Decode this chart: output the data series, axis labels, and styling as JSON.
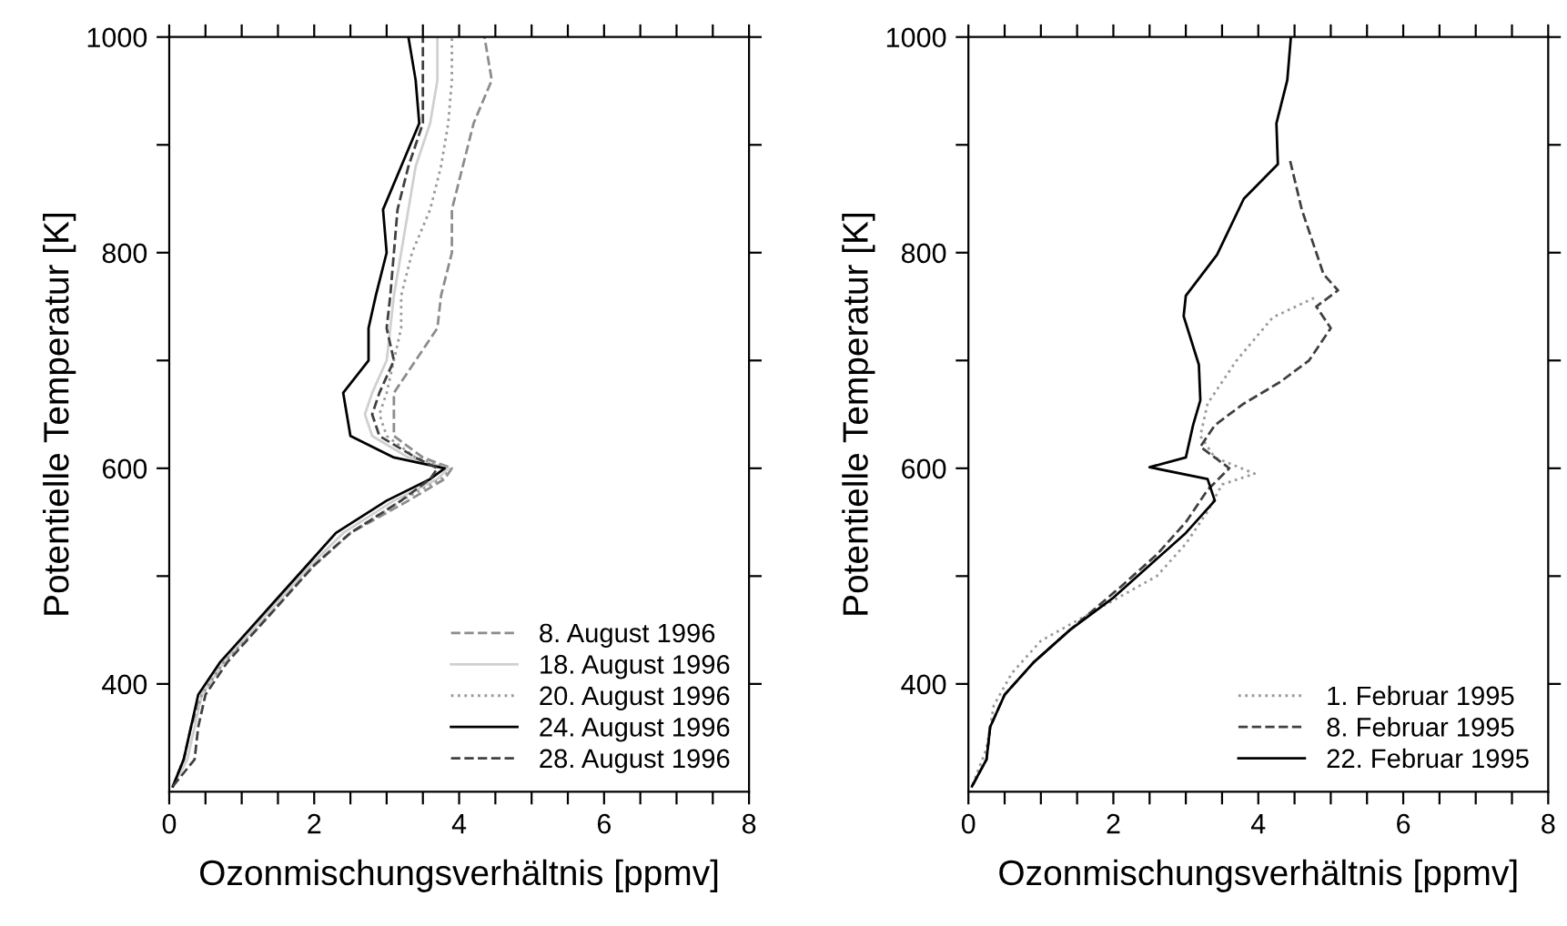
{
  "chart_data": [
    {
      "type": "line",
      "xlabel": "Ozonmischungsverhältnis [ppmv]",
      "ylabel": "Potentielle Temperatur [K]",
      "xlim": [
        0,
        8
      ],
      "ylim": [
        300,
        1000
      ],
      "xticks": [
        0,
        {
          "value": 0.5,
          "label": null
        },
        {
          "value": 1,
          "label": null
        },
        {
          "value": 1.5,
          "label": null
        },
        2,
        {
          "value": 2.5,
          "label": null
        },
        {
          "value": 3,
          "label": null
        },
        {
          "value": 3.5,
          "label": null
        },
        4,
        {
          "value": 4.5,
          "label": null
        },
        {
          "value": 5,
          "label": null
        },
        {
          "value": 5.5,
          "label": null
        },
        6,
        {
          "value": 6.5,
          "label": null
        },
        {
          "value": 7,
          "label": null
        },
        {
          "value": 7.5,
          "label": null
        },
        8
      ],
      "yticks": [
        400,
        {
          "value": 500,
          "label": null
        },
        600,
        {
          "value": 700,
          "label": null
        },
        800,
        {
          "value": 900,
          "label": null
        },
        1000
      ],
      "legend": "bottom right",
      "grid": false,
      "marker": "none",
      "series": [
        {
          "name": "8. August 1996",
          "color": "#8c8c8c",
          "line_style": "dashed",
          "x": [
            0.05,
            0.2,
            0.3,
            0.45,
            0.75,
            1.15,
            1.55,
            2.0,
            2.5,
            3.3,
            3.8,
            3.9,
            3.5,
            3.1,
            3.1,
            3.1,
            3.4,
            3.7,
            3.75,
            3.9,
            3.9,
            4.05,
            4.2,
            4.45,
            4.35
          ],
          "values": [
            305,
            330,
            360,
            390,
            420,
            450,
            480,
            510,
            540,
            570,
            590,
            600,
            610,
            630,
            650,
            670,
            700,
            730,
            760,
            800,
            840,
            880,
            920,
            960,
            1000
          ]
        },
        {
          "name": "18. August 1996",
          "color": "#d0d0d0",
          "line_style": "solid",
          "x": [
            0.05,
            0.25,
            0.35,
            0.45,
            0.75,
            1.15,
            1.55,
            1.95,
            2.4,
            3.1,
            3.7,
            3.85,
            3.3,
            2.8,
            2.7,
            2.8,
            3.0,
            3.05,
            3.1,
            3.2,
            3.3,
            3.4,
            3.6,
            3.7,
            3.7
          ],
          "values": [
            305,
            330,
            360,
            390,
            420,
            450,
            480,
            510,
            540,
            570,
            590,
            600,
            610,
            630,
            650,
            670,
            700,
            730,
            760,
            800,
            840,
            880,
            920,
            960,
            1000
          ]
        },
        {
          "name": "20. August 1996",
          "color": "#9a9a9a",
          "line_style": "dotted",
          "x": [
            0.05,
            0.2,
            0.3,
            0.45,
            0.75,
            1.2,
            1.6,
            2.0,
            2.5,
            3.2,
            3.75,
            3.9,
            3.4,
            3.0,
            2.9,
            3.0,
            3.1,
            3.2,
            3.2,
            3.35,
            3.6,
            3.75,
            3.85,
            3.9,
            3.9
          ],
          "values": [
            305,
            330,
            360,
            390,
            420,
            450,
            480,
            510,
            540,
            570,
            590,
            600,
            610,
            630,
            650,
            670,
            700,
            730,
            760,
            800,
            840,
            880,
            920,
            960,
            1000
          ]
        },
        {
          "name": "24. August 1996",
          "color": "#000000",
          "line_style": "solid",
          "x": [
            0.05,
            0.2,
            0.3,
            0.4,
            0.7,
            1.1,
            1.5,
            1.9,
            2.3,
            3.0,
            3.6,
            3.8,
            3.1,
            2.5,
            2.45,
            2.4,
            2.75,
            2.75,
            2.85,
            3.0,
            2.95,
            3.2,
            3.45,
            3.4,
            3.3
          ],
          "values": [
            305,
            330,
            360,
            390,
            420,
            450,
            480,
            510,
            540,
            570,
            590,
            600,
            610,
            630,
            650,
            670,
            700,
            730,
            760,
            800,
            840,
            880,
            920,
            960,
            1000
          ]
        },
        {
          "name": "28. August 1996",
          "color": "#404040",
          "line_style": "dashed",
          "x": [
            0.05,
            0.35,
            0.4,
            0.5,
            0.8,
            1.2,
            1.6,
            2.0,
            2.5,
            3.2,
            3.6,
            3.7,
            3.4,
            2.9,
            2.8,
            2.9,
            3.1,
            3.0,
            3.05,
            3.1,
            3.15,
            3.3,
            3.5,
            3.5,
            3.5
          ],
          "values": [
            305,
            330,
            360,
            390,
            420,
            450,
            480,
            510,
            540,
            570,
            590,
            600,
            610,
            630,
            650,
            670,
            700,
            730,
            760,
            800,
            840,
            880,
            920,
            960,
            1000
          ]
        }
      ]
    },
    {
      "type": "line",
      "xlabel": "Ozonmischungsverhältnis [ppmv]",
      "ylabel": "Potentielle Temperatur [K]",
      "xlim": [
        0,
        8
      ],
      "ylim": [
        300,
        1000
      ],
      "xticks": [
        0,
        {
          "value": 0.5,
          "label": null
        },
        {
          "value": 1,
          "label": null
        },
        {
          "value": 1.5,
          "label": null
        },
        2,
        {
          "value": 2.5,
          "label": null
        },
        {
          "value": 3,
          "label": null
        },
        {
          "value": 3.5,
          "label": null
        },
        4,
        {
          "value": 4.5,
          "label": null
        },
        {
          "value": 5,
          "label": null
        },
        {
          "value": 5.5,
          "label": null
        },
        6,
        {
          "value": 6.5,
          "label": null
        },
        {
          "value": 7,
          "label": null
        },
        {
          "value": 7.5,
          "label": null
        },
        8
      ],
      "yticks": [
        400,
        {
          "value": 500,
          "label": null
        },
        600,
        {
          "value": 700,
          "label": null
        },
        800,
        {
          "value": 900,
          "label": null
        },
        1000
      ],
      "legend": "bottom right",
      "grid": false,
      "marker": "none",
      "series": [
        {
          "name": "1. Februar 1995",
          "color": "#9a9a9a",
          "line_style": "dotted",
          "x": [
            4.77,
            4.2,
            3.7,
            3.3,
            3.2,
            3.4,
            3.95,
            3.5,
            3.3,
            3.0,
            2.6,
            1.8,
            1.0,
            0.6,
            0.35,
            0.25,
            0.05
          ],
          "values": [
            758,
            740,
            700,
            660,
            630,
            610,
            595,
            585,
            560,
            530,
            500,
            470,
            440,
            410,
            380,
            340,
            305
          ]
        },
        {
          "name": "8. Februar 1995",
          "color": "#404040",
          "line_style": "dashed",
          "x": [
            4.44,
            4.6,
            4.8,
            4.9,
            5.1,
            4.8,
            5.0,
            4.7,
            4.3,
            3.8,
            3.4,
            3.2,
            3.6,
            3.3,
            3.0,
            2.6,
            2.1,
            1.4,
            0.9,
            0.5,
            0.3,
            0.25,
            0.05
          ],
          "values": [
            885,
            840,
            800,
            780,
            765,
            750,
            730,
            700,
            680,
            660,
            640,
            620,
            600,
            580,
            550,
            520,
            490,
            450,
            420,
            390,
            360,
            330,
            305
          ]
        },
        {
          "name": "22. Februar 1995",
          "color": "#000000",
          "line_style": "solid",
          "x": [
            4.45,
            4.4,
            4.25,
            4.27,
            3.8,
            3.43,
            3.0,
            2.97,
            3.18,
            3.2,
            3.1,
            3.0,
            2.5,
            3.3,
            3.4,
            3.0,
            2.5,
            2.0,
            1.4,
            0.9,
            0.5,
            0.3,
            0.25,
            0.05
          ],
          "values": [
            1000,
            960,
            920,
            882,
            850,
            798,
            760,
            741,
            696,
            663,
            640,
            610,
            601,
            590,
            570,
            540,
            510,
            480,
            450,
            420,
            390,
            360,
            330,
            305
          ]
        }
      ]
    }
  ]
}
